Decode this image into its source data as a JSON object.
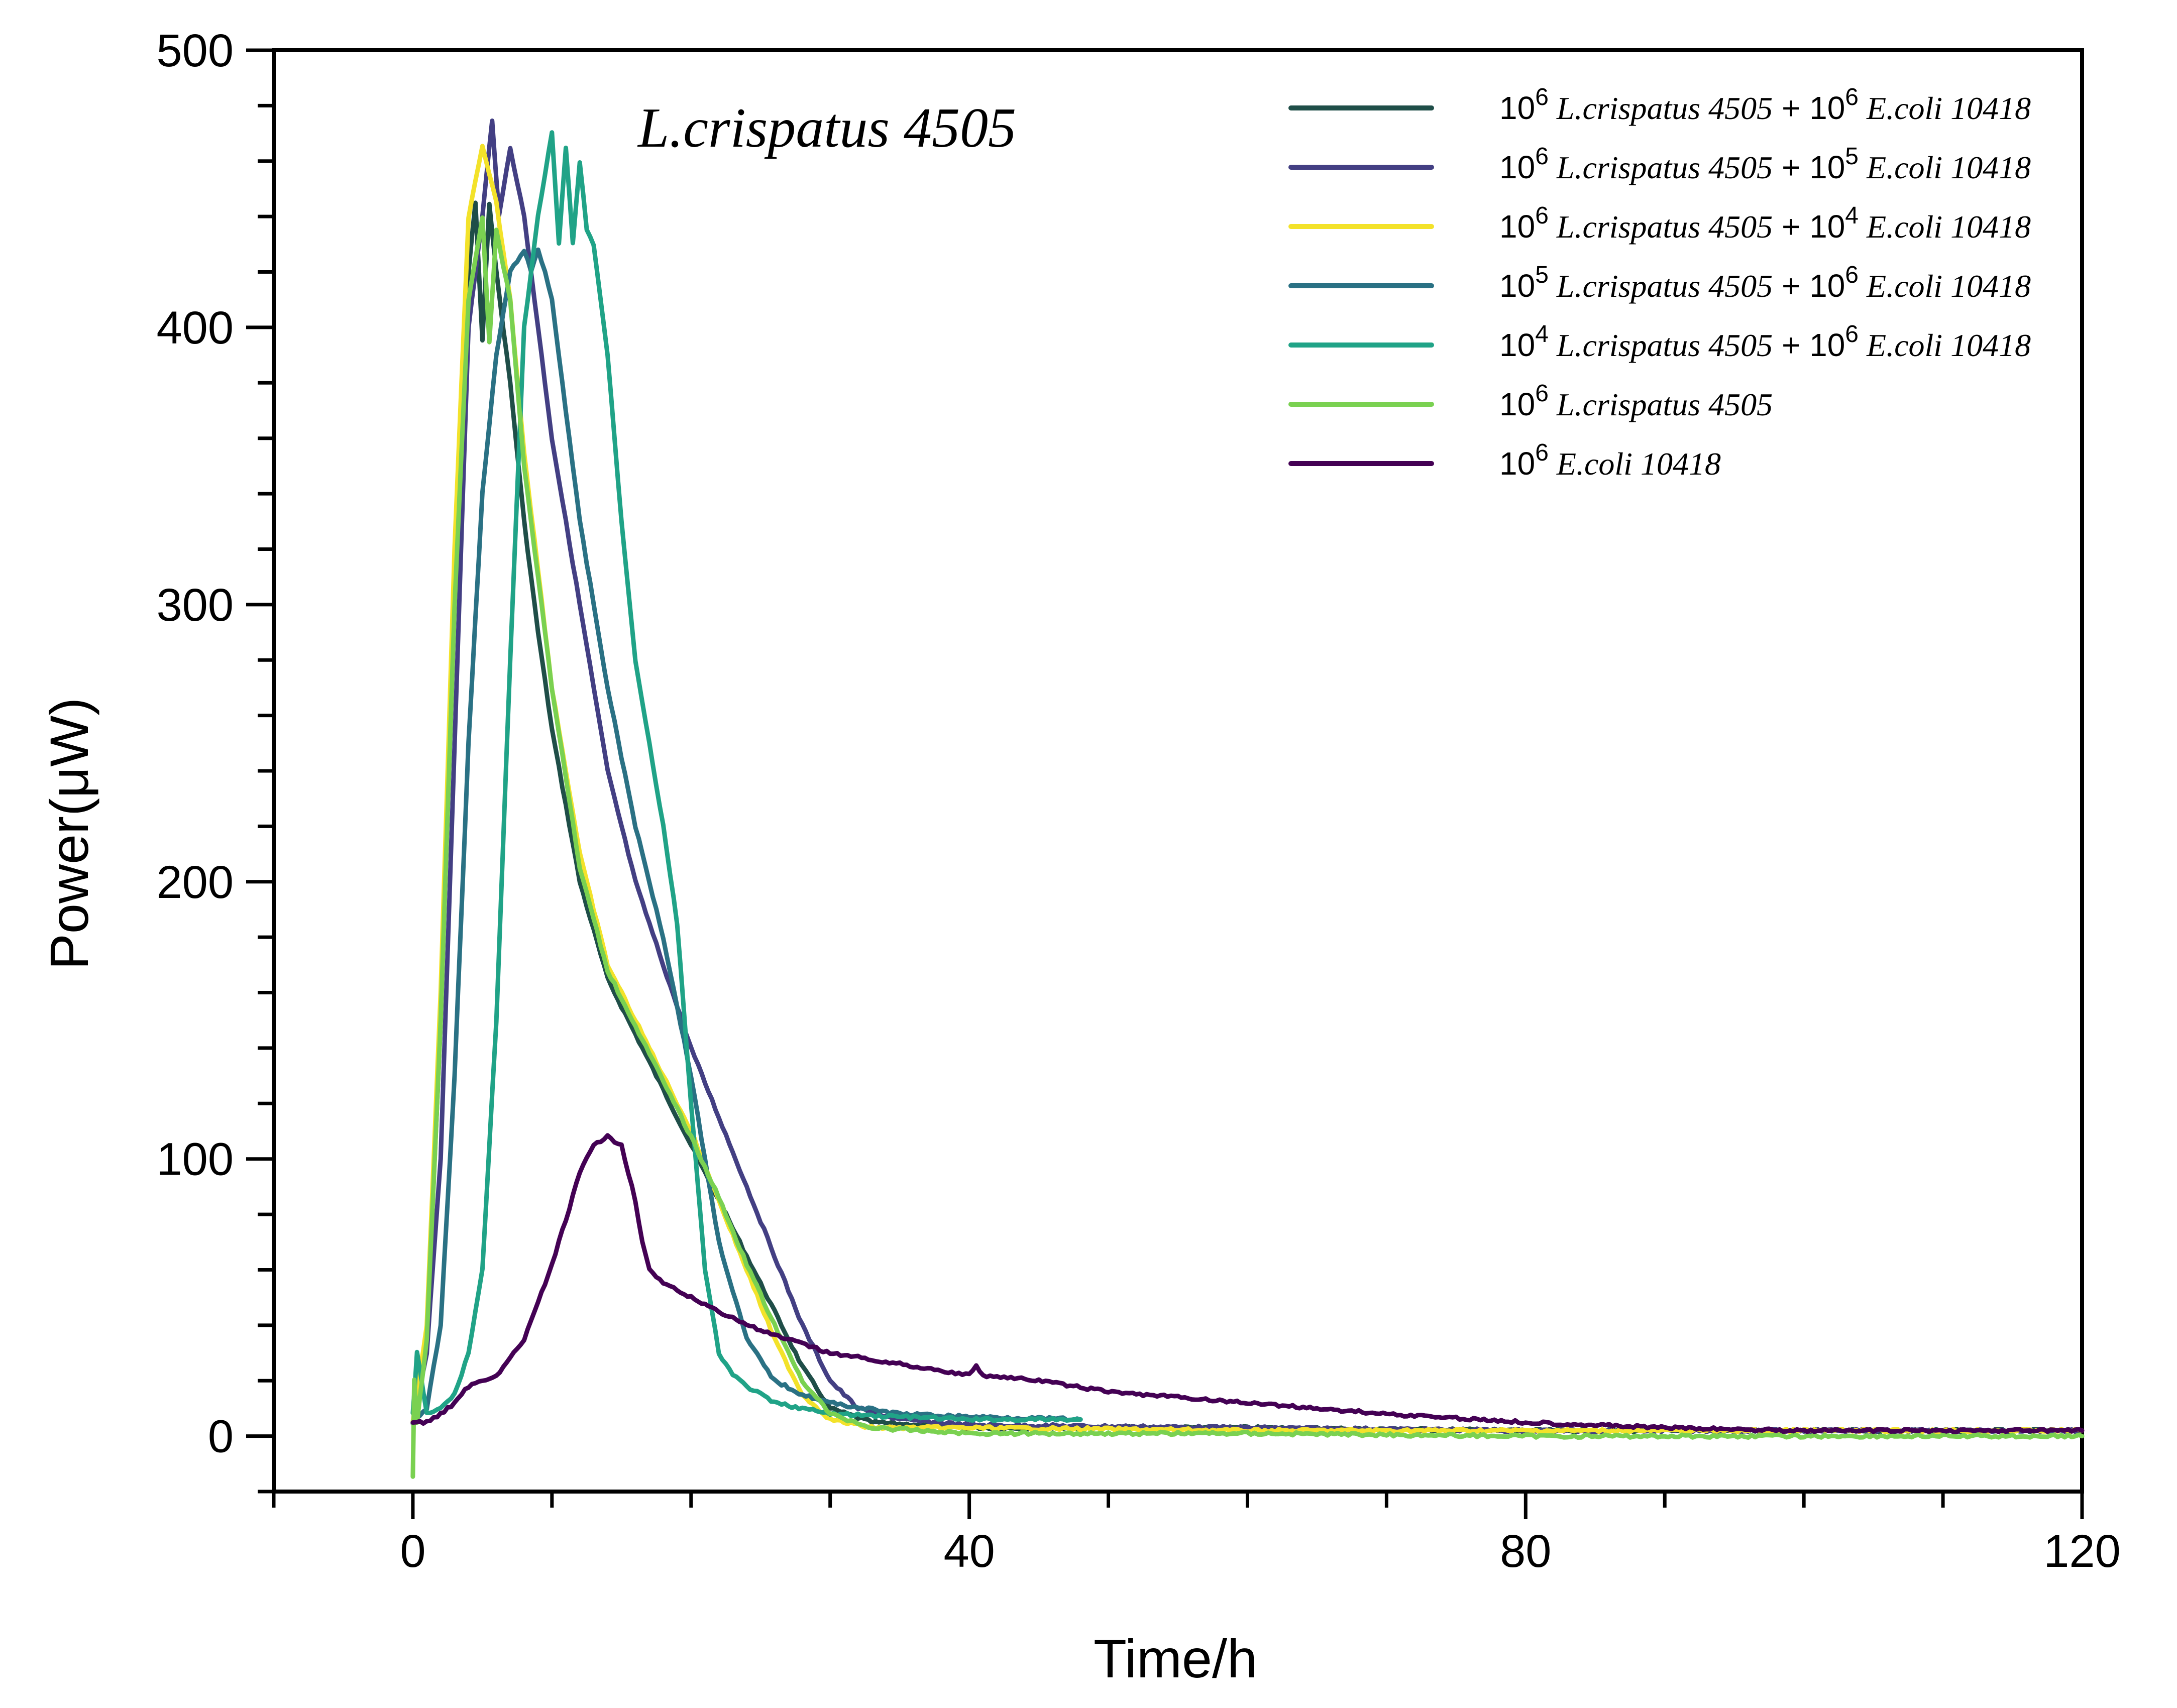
{
  "chart_data": {
    "type": "line",
    "xlabel": "Time/h",
    "ylabel": "Power(μW)",
    "xlim": [
      -10,
      120
    ],
    "ylim": [
      -20,
      500
    ],
    "xticks": [
      0,
      40,
      80,
      120
    ],
    "yticks": [
      0,
      100,
      200,
      300,
      400,
      500
    ],
    "xticks_minor_step": 10,
    "yticks_minor_step": 20,
    "annotation": "L.crispatus 4505",
    "grid": false,
    "legend_position": "top-right",
    "series": [
      {
        "name": "10^6 L.crispatus 4505 + 10^6 E.coli 10418",
        "label_parts": [
          "10",
          "6",
          "L.crispatus 4505",
          " + 10",
          "6",
          "E.coli 10418"
        ],
        "color": "#1f4e48",
        "x": [
          0,
          1,
          2,
          3,
          4,
          4.5,
          5,
          5.5,
          6,
          7,
          8,
          9,
          10,
          12,
          14,
          16,
          18,
          20,
          22,
          24,
          26,
          28,
          30,
          33,
          40,
          60,
          80,
          100,
          120
        ],
        "y": [
          5,
          35,
          150,
          300,
          420,
          445,
          395,
          445,
          420,
          380,
          330,
          290,
          255,
          200,
          165,
          145,
          125,
          105,
          85,
          65,
          45,
          25,
          10,
          5,
          3,
          3,
          2,
          2,
          2
        ]
      },
      {
        "name": "10^6 L.crispatus 4505 + 10^5 E.coli 10418",
        "label_parts": [
          "10",
          "6",
          "L.crispatus 4505",
          " + 10",
          "5",
          "E.coli 10418"
        ],
        "color": "#433f83",
        "x": [
          0,
          1,
          2,
          3,
          4,
          5,
          5.7,
          6.2,
          7,
          8,
          9,
          10,
          12,
          14,
          16,
          18,
          20,
          22,
          24,
          26,
          28,
          30,
          32,
          35,
          40,
          60,
          80,
          100,
          120
        ],
        "y": [
          5,
          30,
          100,
          250,
          400,
          440,
          475,
          440,
          465,
          440,
          400,
          360,
          300,
          240,
          200,
          170,
          140,
          115,
          90,
          65,
          40,
          20,
          10,
          6,
          4,
          3,
          2,
          2,
          2
        ]
      },
      {
        "name": "10^6 L.crispatus 4505 + 10^4 E.coli 10418",
        "label_parts": [
          "10",
          "6",
          "L.crispatus 4505",
          " + 10",
          "4",
          "E.coli 10418"
        ],
        "color": "#f3e22a",
        "x": [
          0,
          1,
          2,
          3,
          4,
          5,
          6,
          7,
          8,
          10,
          12,
          14,
          16,
          18,
          20,
          22,
          24,
          26,
          28,
          30,
          33,
          40,
          60,
          80,
          100,
          120
        ],
        "y": [
          5,
          40,
          160,
          320,
          440,
          465,
          445,
          410,
          355,
          270,
          210,
          170,
          150,
          130,
          110,
          85,
          60,
          35,
          15,
          6,
          3,
          3,
          2,
          2,
          2,
          2
        ]
      },
      {
        "name": "10^5 L.crispatus 4505 + 10^6 E.coli 10418",
        "label_parts": [
          "10",
          "5",
          "L.crispatus 4505",
          " + 10",
          "6",
          "E.coli 10418"
        ],
        "color": "#2a7184",
        "x": [
          0,
          1,
          2,
          3,
          4,
          5,
          6,
          7,
          8,
          8.5,
          9,
          9.5,
          10,
          11,
          12,
          14,
          16,
          18,
          20,
          22,
          24,
          26,
          28,
          30,
          35,
          40,
          48
        ],
        "y": [
          5,
          10,
          40,
          130,
          250,
          340,
          390,
          420,
          428,
          420,
          428,
          420,
          410,
          370,
          330,
          270,
          220,
          180,
          130,
          70,
          35,
          20,
          15,
          12,
          8,
          7,
          6
        ]
      },
      {
        "name": "10^4 L.crispatus 4505 + 10^6 E.coli 10418",
        "label_parts": [
          "10",
          "4",
          "L.crispatus 4505",
          " + 10",
          "6",
          "E.coli 10418"
        ],
        "color": "#20a387",
        "x": [
          0,
          0.3,
          1,
          2,
          3,
          4,
          5,
          6,
          7,
          8,
          9,
          10,
          10.5,
          11,
          11.5,
          12,
          12.5,
          13,
          14,
          15,
          16,
          18,
          19,
          20,
          21,
          22,
          23,
          24,
          26,
          28,
          30,
          35,
          40,
          48
        ],
        "y": [
          8,
          30,
          8,
          10,
          15,
          30,
          60,
          150,
          280,
          400,
          440,
          470,
          430,
          465,
          430,
          460,
          435,
          430,
          390,
          330,
          280,
          220,
          185,
          120,
          60,
          30,
          22,
          18,
          12,
          10,
          8,
          7,
          6,
          6
        ]
      },
      {
        "name": "10^6 L.crispatus 4505",
        "label_parts": [
          "10",
          "6",
          "L.crispatus 4505"
        ],
        "color": "#7ad151",
        "x": [
          0,
          0.1,
          0.3,
          1,
          2,
          3,
          4,
          5,
          5.5,
          6,
          7,
          8,
          10,
          12,
          14,
          16,
          18,
          20,
          22,
          24,
          26,
          28,
          30,
          33,
          40,
          60,
          80,
          100,
          120
        ],
        "y": [
          -15,
          20,
          5,
          35,
          150,
          300,
          410,
          440,
          395,
          435,
          410,
          350,
          270,
          205,
          168,
          148,
          128,
          108,
          86,
          62,
          40,
          20,
          8,
          3,
          1,
          1,
          0,
          0,
          0
        ]
      },
      {
        "name": "10^6 E.coli 10418",
        "label_parts": [
          "10",
          "6",
          "E.coli 10418"
        ],
        "color": "#440154",
        "x": [
          0,
          1,
          2,
          3,
          4,
          5,
          6,
          7,
          8,
          9,
          10,
          11,
          12,
          13,
          14,
          15,
          16,
          16.5,
          17,
          18,
          20,
          22,
          25,
          30,
          35,
          40,
          40.5,
          41,
          45,
          50,
          60,
          70,
          80,
          90,
          100,
          120
        ],
        "y": [
          5,
          5,
          8,
          12,
          18,
          20,
          22,
          28,
          35,
          48,
          62,
          78,
          95,
          105,
          108,
          105,
          85,
          70,
          60,
          55,
          50,
          45,
          38,
          30,
          26,
          22,
          25,
          22,
          20,
          16,
          12,
          8,
          5,
          3,
          2,
          2
        ]
      }
    ]
  }
}
